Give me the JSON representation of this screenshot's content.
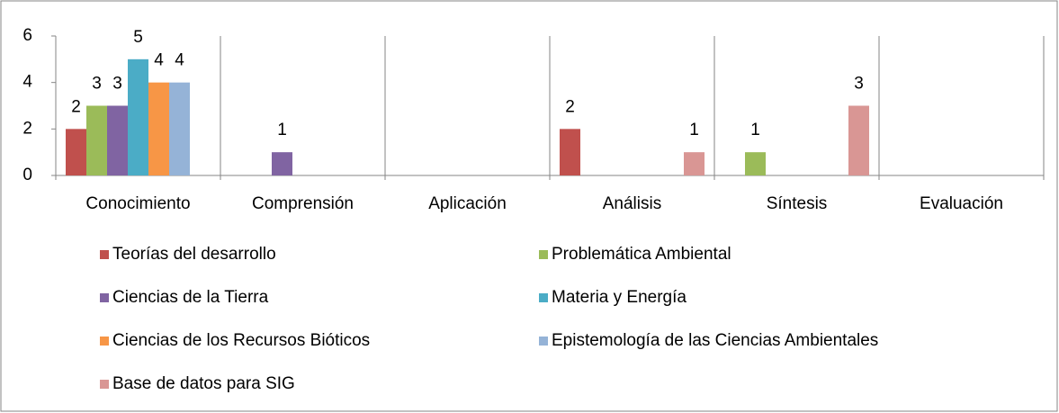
{
  "chart_data": {
    "type": "bar",
    "categories": [
      "Conocimiento",
      "Comprensión",
      "Aplicación",
      "Análisis",
      "Síntesis",
      "Evaluación"
    ],
    "series": [
      {
        "name": "Teorías del desarrollo",
        "color": "#c0504d",
        "values": [
          2,
          null,
          null,
          2,
          null,
          null
        ]
      },
      {
        "name": "Problemática Ambiental",
        "color": "#9bbb59",
        "values": [
          3,
          null,
          null,
          null,
          1,
          null
        ]
      },
      {
        "name": "Ciencias de la Tierra",
        "color": "#8064a2",
        "values": [
          3,
          1,
          null,
          null,
          null,
          null
        ]
      },
      {
        "name": "Materia y Energía",
        "color": "#4bacc6",
        "values": [
          5,
          null,
          null,
          null,
          null,
          null
        ]
      },
      {
        "name": "Ciencias de los Recursos Bióticos",
        "color": "#f79646",
        "values": [
          4,
          null,
          null,
          null,
          null,
          null
        ]
      },
      {
        "name": "Epistemología de las Ciencias Ambientales",
        "color": "#95b3d7",
        "values": [
          4,
          null,
          null,
          null,
          null,
          null
        ]
      },
      {
        "name": "Base de datos para SIG",
        "color": "#d99694",
        "values": [
          null,
          null,
          null,
          1,
          3,
          null
        ]
      }
    ],
    "ylim": [
      0,
      6
    ],
    "yticks": [
      0,
      2,
      4,
      6
    ],
    "grid": false,
    "legend": "bottom"
  }
}
